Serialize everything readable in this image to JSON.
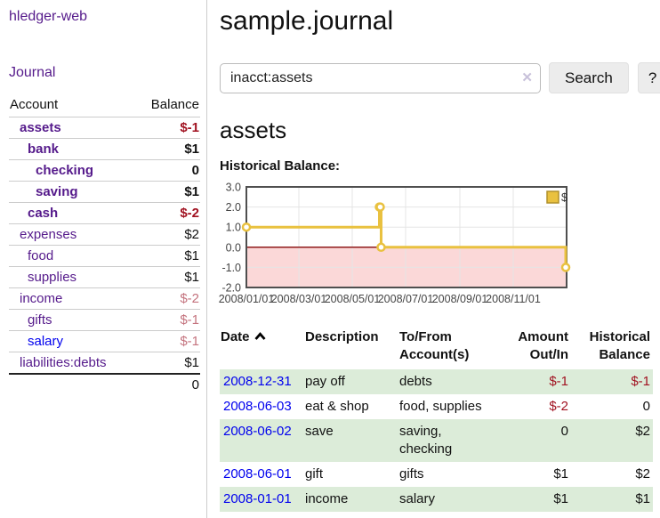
{
  "app": {
    "brand": "hledger-web",
    "nav_journal": "Journal"
  },
  "colors": {
    "link_purple": "#551a8b",
    "link_blue": "#0000ee",
    "negative_strong": "#a11221",
    "negative_soft": "#c4737e",
    "row_green": "#dcecd9",
    "chart_line_gold": "#e9c13f",
    "chart_negative_region": "#fbd8d8",
    "chart_zero_line": "#8f1a1a"
  },
  "sidebar": {
    "table": {
      "headers": [
        "Account",
        "Balance"
      ],
      "rows": [
        {
          "name": "assets",
          "balance": "$-1",
          "depth": 1,
          "bold": true,
          "balance_tone": "negative-strong",
          "link_tone": "purple"
        },
        {
          "name": "bank",
          "balance": "$1",
          "depth": 2,
          "bold": true,
          "balance_tone": "normal",
          "link_tone": "purple"
        },
        {
          "name": "checking",
          "balance": "0",
          "depth": 3,
          "bold": true,
          "balance_tone": "normal",
          "link_tone": "purple"
        },
        {
          "name": "saving",
          "balance": "$1",
          "depth": 3,
          "bold": true,
          "balance_tone": "normal",
          "link_tone": "purple"
        },
        {
          "name": "cash",
          "balance": "$-2",
          "depth": 2,
          "bold": true,
          "balance_tone": "negative-strong",
          "link_tone": "purple"
        },
        {
          "name": "expenses",
          "balance": "$2",
          "depth": 1,
          "bold": false,
          "balance_tone": "normal",
          "link_tone": "purple"
        },
        {
          "name": "food",
          "balance": "$1",
          "depth": 2,
          "bold": false,
          "balance_tone": "normal",
          "link_tone": "purple"
        },
        {
          "name": "supplies",
          "balance": "$1",
          "depth": 2,
          "bold": false,
          "balance_tone": "normal",
          "link_tone": "purple"
        },
        {
          "name": "income",
          "balance": "$-2",
          "depth": 1,
          "bold": false,
          "balance_tone": "negative-soft",
          "link_tone": "purple"
        },
        {
          "name": "gifts",
          "balance": "$-1",
          "depth": 2,
          "bold": false,
          "balance_tone": "negative-soft",
          "link_tone": "purple"
        },
        {
          "name": "salary",
          "balance": "$-1",
          "depth": 2,
          "bold": false,
          "balance_tone": "negative-soft",
          "link_tone": "blue"
        },
        {
          "name": "liabilities:debts",
          "balance": "$1",
          "depth": 1,
          "bold": false,
          "balance_tone": "normal",
          "link_tone": "purple"
        }
      ],
      "total": "0"
    }
  },
  "main": {
    "title": "sample.journal",
    "search": {
      "value": "inacct:assets",
      "clear_icon": "✕",
      "button_label": "Search",
      "help_label": "?"
    },
    "account_heading": "assets"
  },
  "chart_data": {
    "type": "line",
    "title": "Historical Balance:",
    "x_domain": [
      "2008-01-01",
      "2009-01-01"
    ],
    "ylim": [
      -2,
      3
    ],
    "y_ticks": [
      [
        "3.0",
        3
      ],
      [
        "2.0",
        2
      ],
      [
        "1.0",
        1
      ],
      [
        "0.0",
        0
      ],
      [
        "-1.0",
        -1
      ],
      [
        "-2.0",
        -2
      ]
    ],
    "x_ticks": [
      [
        "2008/01/01",
        "2008-01-01"
      ],
      [
        "2008/03/01",
        "2008-03-01"
      ],
      [
        "2008/05/01",
        "2008-05-01"
      ],
      [
        "2008/07/01",
        "2008-07-01"
      ],
      [
        "2008/09/01",
        "2008-09-01"
      ],
      [
        "2008/11/01",
        "2008-11-01"
      ]
    ],
    "series": [
      {
        "name": "$",
        "step": true,
        "points": [
          [
            "2008-01-01",
            1
          ],
          [
            "2008-06-01",
            2
          ],
          [
            "2008-06-02",
            2
          ],
          [
            "2008-06-03",
            0
          ],
          [
            "2008-12-31",
            -1
          ]
        ]
      }
    ],
    "legend": {
      "label": "$",
      "position": "top-right"
    },
    "grid": true,
    "negative_region_shaded": true
  },
  "register": {
    "columns": [
      {
        "label": "Date",
        "sorted": "ascending"
      },
      {
        "label": "Description"
      },
      {
        "label": "To/From Account(s)"
      },
      {
        "label": "Amount Out/In"
      },
      {
        "label": "Historical Balance"
      }
    ],
    "rows": [
      {
        "date": "2008-12-31",
        "description": "pay off",
        "accounts": "debts",
        "amount": "$-1",
        "balance": "$-1",
        "amount_tone": "negative",
        "balance_tone": "negative",
        "shaded": true
      },
      {
        "date": "2008-06-03",
        "description": "eat & shop",
        "accounts": "food, supplies",
        "amount": "$-2",
        "balance": "0",
        "amount_tone": "negative",
        "balance_tone": "normal",
        "shaded": false
      },
      {
        "date": "2008-06-02",
        "description": "save",
        "accounts": "saving, checking",
        "amount": "0",
        "balance": "$2",
        "amount_tone": "normal",
        "balance_tone": "normal",
        "shaded": true
      },
      {
        "date": "2008-06-01",
        "description": "gift",
        "accounts": "gifts",
        "amount": "$1",
        "balance": "$2",
        "amount_tone": "normal",
        "balance_tone": "normal",
        "shaded": false
      },
      {
        "date": "2008-01-01",
        "description": "income",
        "accounts": "salary",
        "amount": "$1",
        "balance": "$1",
        "amount_tone": "normal",
        "balance_tone": "normal",
        "shaded": true
      }
    ]
  }
}
